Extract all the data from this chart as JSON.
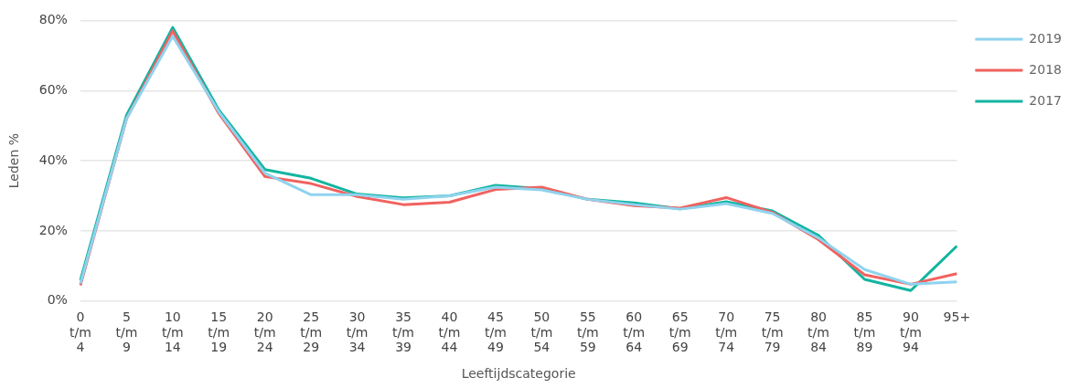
{
  "chart_data": {
    "type": "line",
    "xlabel": "Leeftijdscategorie",
    "ylabel": "Leden %",
    "categories": [
      "0 t/m 4",
      "5 t/m 9",
      "10 t/m 14",
      "15 t/m 19",
      "20 t/m 24",
      "25 t/m 29",
      "30 t/m 34",
      "35 t/m 39",
      "40 t/m 44",
      "45 t/m 49",
      "50 t/m 54",
      "55 t/m 59",
      "60 t/m 64",
      "65 t/m 69",
      "70 t/m 74",
      "75 t/m 79",
      "80 t/m 84",
      "85 t/m 89",
      "90 t/m 94",
      "95+"
    ],
    "series": [
      {
        "name": "2019",
        "color": "#8fd3ef",
        "values": [
          5,
          52,
          75.5,
          54,
          36.5,
          30.3,
          30.3,
          29,
          30,
          32.5,
          31.7,
          29,
          27.5,
          26.2,
          27.8,
          25,
          18,
          9,
          4.8,
          5.5
        ]
      },
      {
        "name": "2018",
        "color": "#f0625f",
        "values": [
          4.5,
          52,
          77,
          53.5,
          35.5,
          33.5,
          29.8,
          27.5,
          28.2,
          31.8,
          32.5,
          29,
          27.2,
          26.5,
          29.5,
          25.3,
          17.5,
          7.5,
          4.8,
          7.8
        ]
      },
      {
        "name": "2017",
        "color": "#12b5a0",
        "values": [
          5.9,
          53,
          78,
          54.5,
          37.5,
          35,
          30.5,
          29.4,
          30,
          33,
          32,
          29,
          28,
          26.3,
          28.3,
          25.7,
          18.7,
          6.2,
          3,
          15.7
        ]
      }
    ],
    "ylim": [
      0,
      80
    ],
    "yticks": [
      {
        "value": 0,
        "label": "0%"
      },
      {
        "value": 20,
        "label": "20%"
      },
      {
        "value": 40,
        "label": "40%"
      },
      {
        "value": 60,
        "label": "60%"
      },
      {
        "value": 80,
        "label": "80%"
      }
    ],
    "grid": "y",
    "legend": "top right",
    "marker": "none",
    "line_style": "solid"
  }
}
